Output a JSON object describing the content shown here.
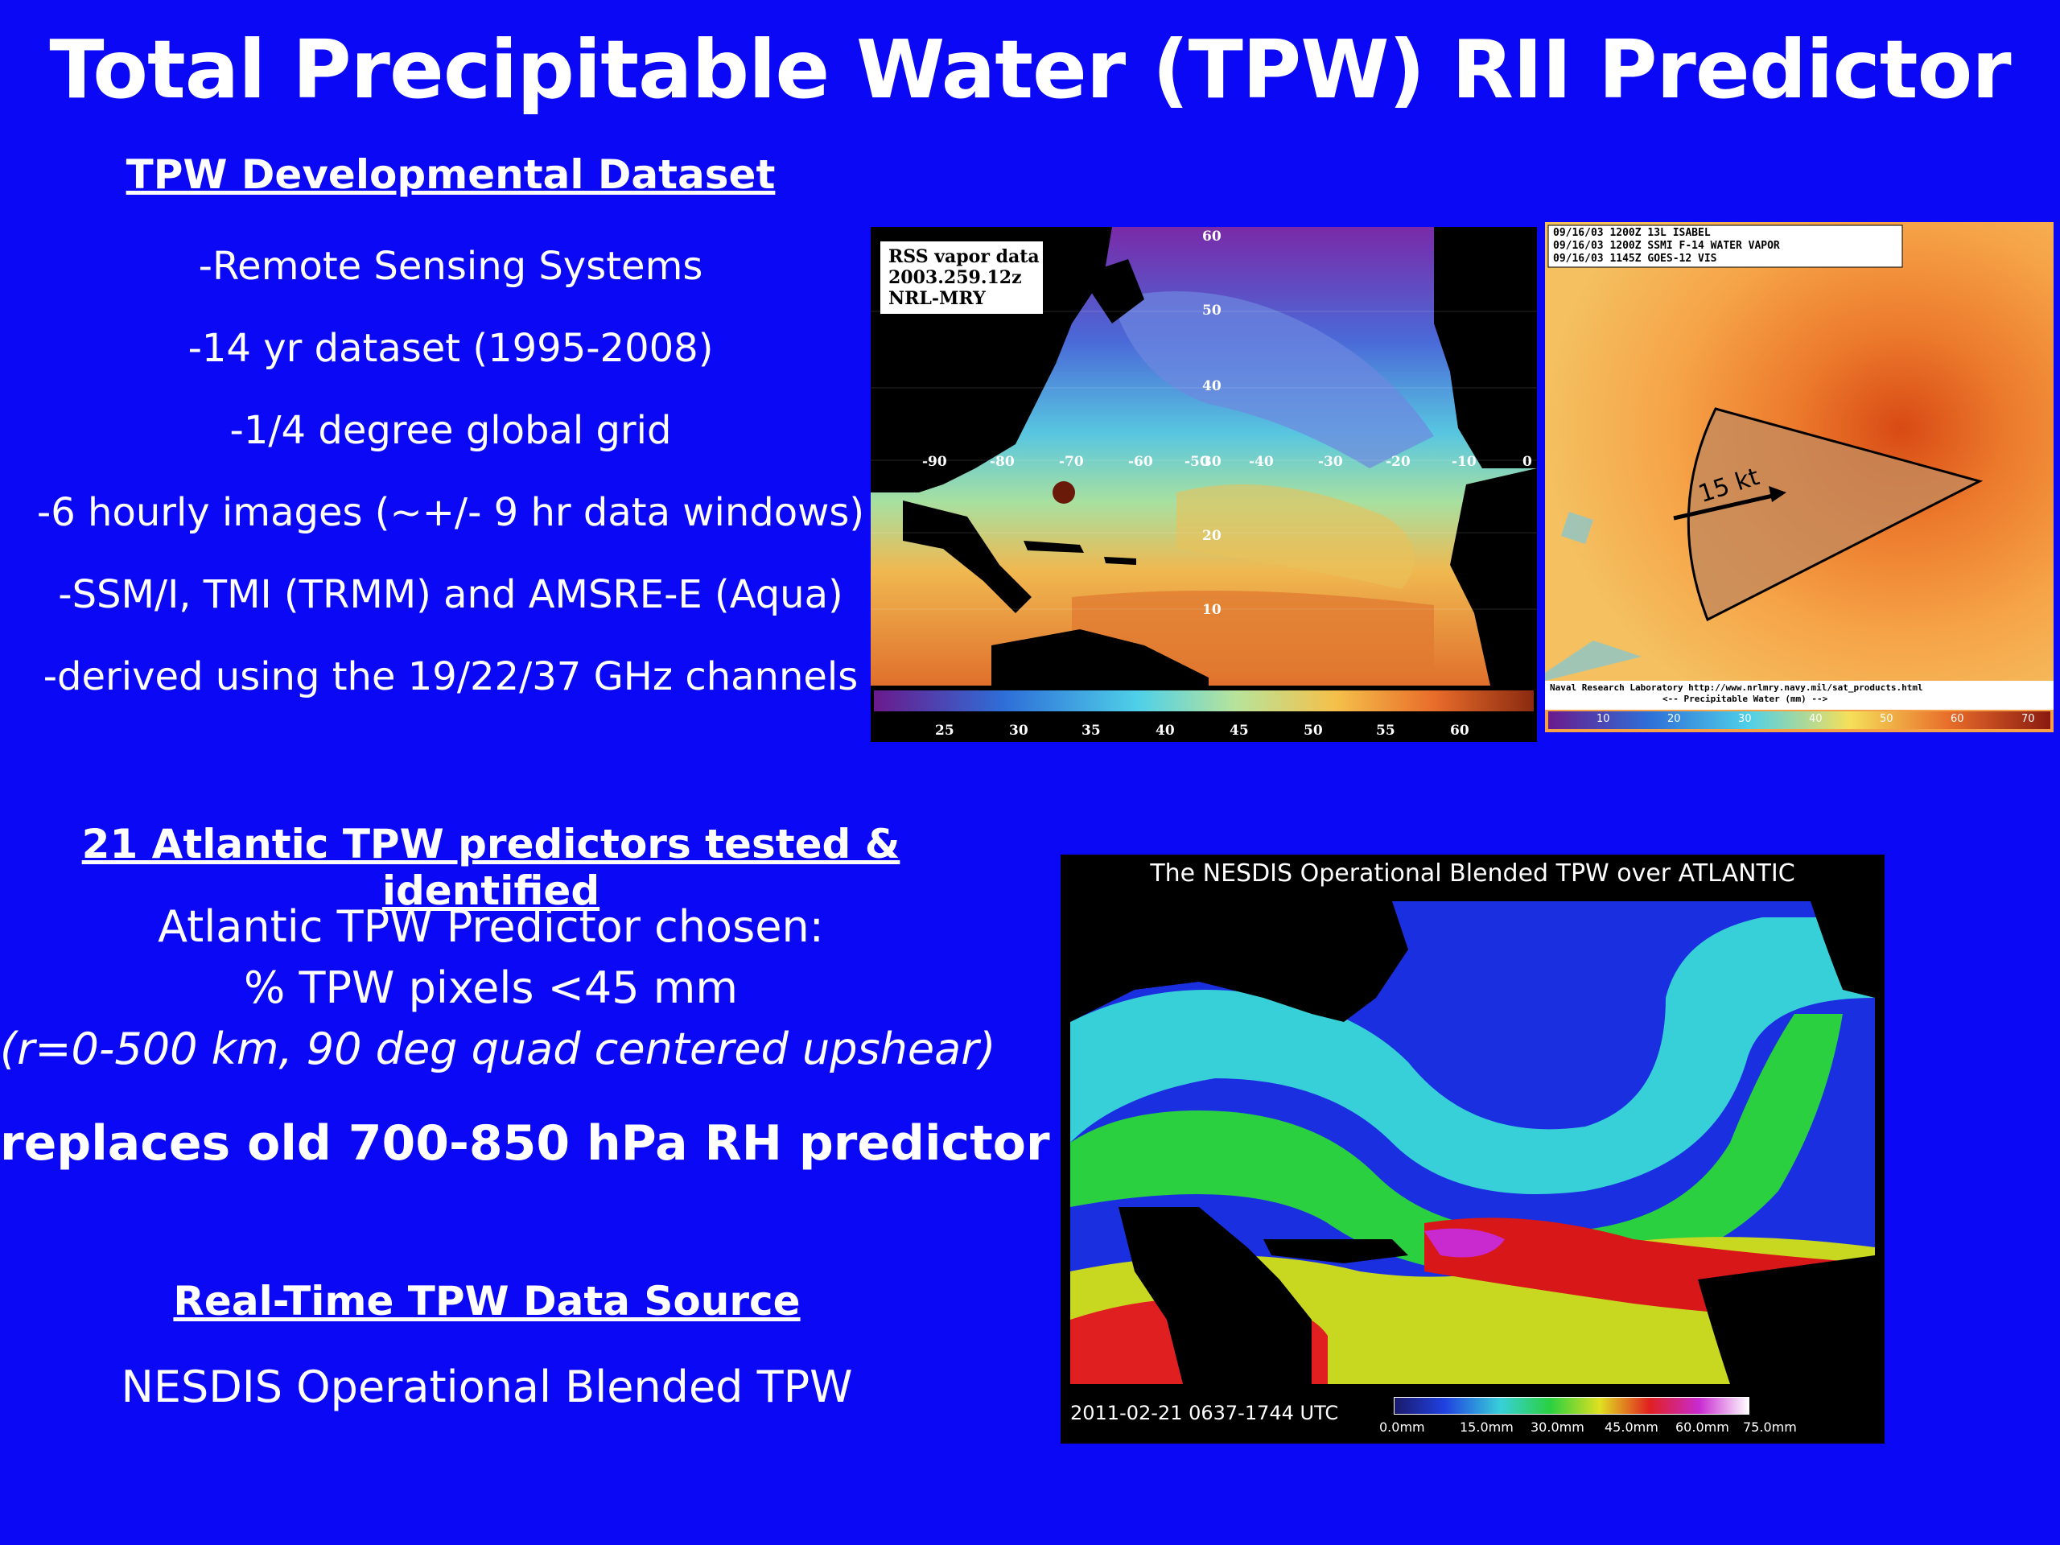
{
  "slide": {
    "title": "Total Precipitable Water (TPW) RII Predictor",
    "dev_dataset": {
      "heading": "TPW Developmental Dataset",
      "bullets": [
        "-Remote Sensing Systems",
        "-14 yr dataset (1995-2008)",
        "-1/4 degree global grid",
        "-6 hourly images (~+/- 9 hr data windows)",
        "-SSM/I, TMI (TRMM) and AMSRE-E (Aqua)",
        "-derived using the 19/22/37 GHz channels"
      ]
    },
    "predictors": {
      "heading": "21 Atlantic TPW predictors tested & identified",
      "chosen_line1": "Atlantic TPW Predictor chosen:",
      "chosen_line2": "% TPW pixels <45 mm",
      "chosen_line3": "(r=0-500 km, 90 deg quad centered upshear)",
      "replaces": "replaces old 700-850 hPa RH predictor"
    },
    "realtime": {
      "heading": "Real-Time TPW Data Source",
      "source": "NESDIS Operational Blended TPW"
    }
  },
  "rss_map": {
    "label_line1": "RSS vapor data",
    "label_line2": "2003.259.12z",
    "label_line3": "NRL-MRY",
    "lat_ticks": [
      "60",
      "50",
      "40",
      "30",
      "20",
      "10"
    ],
    "lon_ticks": [
      "-90",
      "-80",
      "-70",
      "-60",
      "-50",
      "-40",
      "-30",
      "-20",
      "-10",
      "0"
    ],
    "colorbar_ticks": [
      "25",
      "30",
      "35",
      "40",
      "45",
      "50",
      "55",
      "60"
    ]
  },
  "isabel_map": {
    "header_line1": "09/16/03 1200Z  13L ISABEL",
    "header_line2": "09/16/03 1200Z  SSMI F-14 WATER VAPOR",
    "header_line3": "09/16/03 1145Z  GOES-12 VIS",
    "arrow_label": "15 kt",
    "footer_line1": "Naval Research Laboratory  http://www.nrlmry.navy.mil/sat_products.html",
    "footer_line2": "<--  Precipitable Water (mm)  -->",
    "colorbar_ticks": [
      "10",
      "20",
      "30",
      "40",
      "50",
      "60",
      "70"
    ]
  },
  "nesdis_map": {
    "title": "The NESDIS Operational Blended TPW over ATLANTIC",
    "date_range": "2011-02-21  0637-1744  UTC",
    "colorbar_ticks": [
      "0.0mm",
      "15.0mm",
      "30.0mm",
      "45.0mm",
      "60.0mm",
      "75.0mm"
    ]
  },
  "colors": {
    "background": "#0a08f4",
    "text": "#ffffff"
  }
}
